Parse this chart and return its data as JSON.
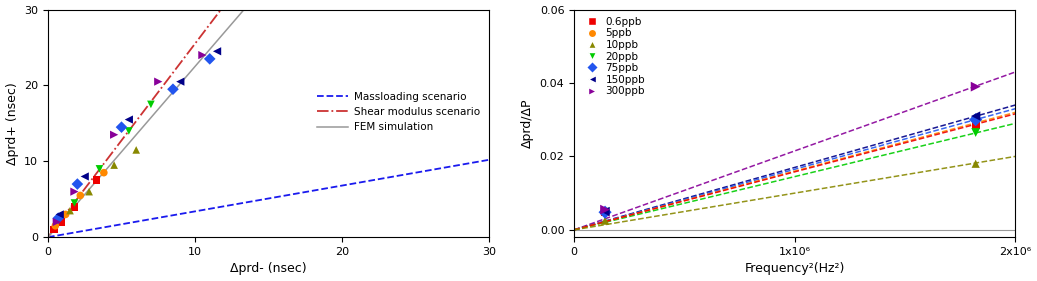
{
  "left_plot": {
    "xlabel": "Δprd- (nsec)",
    "ylabel": "Δprd+ (nsec)",
    "xlim": [
      0,
      30
    ],
    "ylim": [
      0,
      30
    ],
    "xticks": [
      0,
      10,
      20,
      30
    ],
    "yticks": [
      0,
      10,
      20,
      30
    ],
    "massloading_slope": 0.34,
    "shear_slope": 2.55,
    "fem_slope": 2.25,
    "massloading_color": "#1a1aee",
    "shear_color": "#cc3333",
    "fem_color": "#999999",
    "legend_labels": [
      "Massloading scenario",
      "Shear modulus scenario",
      "FEM simulation"
    ],
    "legend_loc": "center right",
    "data_points": [
      {
        "label": "0.6ppb",
        "x": [
          0.4,
          0.9,
          1.8,
          3.3
        ],
        "y": [
          1.0,
          2.0,
          4.0,
          7.5
        ],
        "color": "#ee0000",
        "marker": "s",
        "size": 30
      },
      {
        "label": "5ppb",
        "x": [
          0.5,
          1.2,
          2.2,
          3.8
        ],
        "y": [
          1.5,
          3.0,
          5.5,
          8.5
        ],
        "color": "#ff8800",
        "marker": "o",
        "size": 30
      },
      {
        "label": "10ppb",
        "x": [
          1.5,
          2.8,
          4.5,
          6.0
        ],
        "y": [
          3.5,
          6.0,
          9.5,
          11.5
        ],
        "color": "#888800",
        "marker": "^",
        "size": 30
      },
      {
        "label": "20ppb",
        "x": [
          1.8,
          3.5,
          5.5,
          7.0
        ],
        "y": [
          4.5,
          9.0,
          14.0,
          17.5
        ],
        "color": "#00cc00",
        "marker": "v",
        "size": 30
      },
      {
        "label": "75ppb",
        "x": [
          0.7,
          2.0,
          5.0,
          8.5,
          11.0
        ],
        "y": [
          2.5,
          7.0,
          14.5,
          19.5,
          23.5
        ],
        "color": "#2255ee",
        "marker": "D",
        "size": 35
      },
      {
        "label": "150ppb",
        "x": [
          0.8,
          2.5,
          5.5,
          9.0,
          11.5
        ],
        "y": [
          3.0,
          8.0,
          15.5,
          20.5,
          24.5
        ],
        "color": "#000088",
        "marker": "<",
        "size": 35
      },
      {
        "label": "300ppb",
        "x": [
          0.6,
          1.8,
          4.5,
          7.5,
          10.5
        ],
        "y": [
          2.0,
          6.0,
          13.5,
          20.5,
          24.0
        ],
        "color": "#880099",
        "marker": ">",
        "size": 35
      }
    ]
  },
  "right_plot": {
    "xlabel": "Frequency²(Hz²)",
    "ylabel": "Δprd/ΔP",
    "xlim": [
      0,
      2000000.0
    ],
    "ylim": [
      -0.002,
      0.06
    ],
    "yticks": [
      0.0,
      0.02,
      0.04,
      0.06
    ],
    "xticks": [
      0,
      1000000.0,
      2000000.0
    ],
    "xticklabels": [
      "0",
      "1x10⁶",
      "2x10⁶"
    ],
    "fem_color": "#999999",
    "legend_entries": [
      {
        "label": "0.6ppb",
        "color": "#ee0000",
        "marker": "s"
      },
      {
        "label": "5ppb",
        "color": "#ff8800",
        "marker": "o"
      },
      {
        "label": "10ppb",
        "color": "#888800",
        "marker": "^"
      },
      {
        "label": "20ppb",
        "color": "#00cc00",
        "marker": "v"
      },
      {
        "label": "75ppb",
        "color": "#2255ee",
        "marker": "D"
      },
      {
        "label": "150ppb",
        "color": "#000088",
        "marker": "<"
      },
      {
        "label": "300ppb",
        "color": "#880099",
        "marker": ">"
      }
    ],
    "data_series": [
      {
        "label": "0.6ppb",
        "color": "#ee0000",
        "marker": "s",
        "size": 35,
        "xdata": [
          140000.0,
          1820000.0
        ],
        "ydata": [
          0.0048,
          0.0285
        ]
      },
      {
        "label": "5ppb",
        "color": "#ff8800",
        "marker": "o",
        "size": 35,
        "xdata": [
          140000.0,
          1820000.0
        ],
        "ydata": [
          0.0048,
          0.03
        ]
      },
      {
        "label": "10ppb",
        "color": "#888800",
        "marker": "^",
        "size": 35,
        "xdata": [
          140000.0,
          1820000.0
        ],
        "ydata": [
          0.0025,
          0.018
        ]
      },
      {
        "label": "20ppb",
        "color": "#00cc00",
        "marker": "v",
        "size": 40,
        "xdata": [
          140000.0,
          1820000.0
        ],
        "ydata": [
          0.0048,
          0.0265
        ]
      },
      {
        "label": "75ppb",
        "color": "#2255ee",
        "marker": "D",
        "size": 45,
        "xdata": [
          140000.0,
          1820000.0
        ],
        "ydata": [
          0.0048,
          0.03
        ]
      },
      {
        "label": "150ppb",
        "color": "#000088",
        "marker": "<",
        "size": 45,
        "xdata": [
          140000.0,
          1820000.0
        ],
        "ydata": [
          0.005,
          0.031
        ]
      },
      {
        "label": "300ppb",
        "color": "#880099",
        "marker": ">",
        "size": 50,
        "xdata": [
          140000.0,
          1820000.0
        ],
        "ydata": [
          0.0055,
          0.039
        ]
      }
    ],
    "dashed_lines": [
      {
        "slope": 2.15e-08,
        "color": "#880099"
      },
      {
        "slope": 1.7e-08,
        "color": "#000088"
      },
      {
        "slope": 1.65e-08,
        "color": "#2255ee"
      },
      {
        "slope": 1.45e-08,
        "color": "#00cc00"
      },
      {
        "slope": 1.6e-08,
        "color": "#ff8800"
      },
      {
        "slope": 1.58e-08,
        "color": "#ee0000"
      },
      {
        "slope": 1e-08,
        "color": "#888800"
      }
    ]
  }
}
